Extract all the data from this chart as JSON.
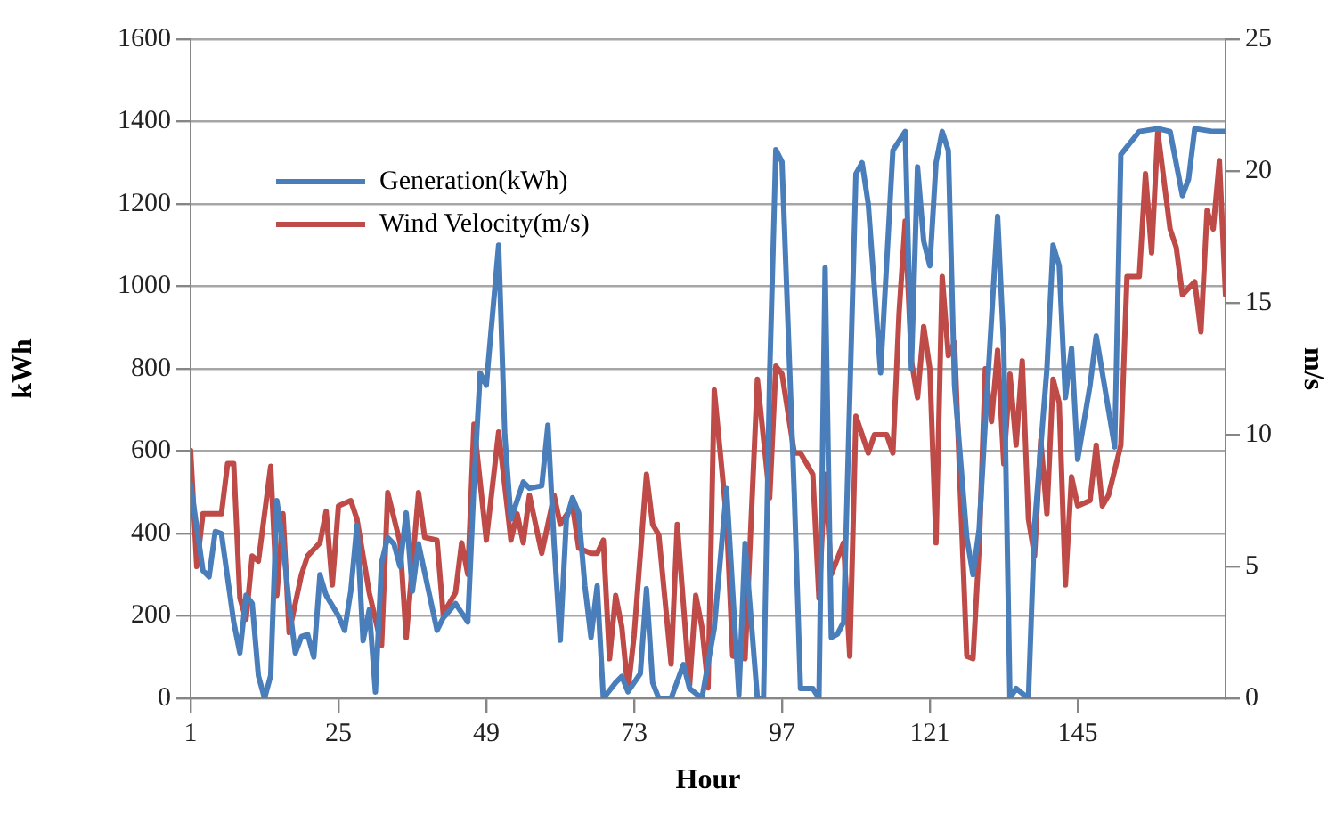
{
  "chart_data": {
    "type": "line",
    "xlabel": "Hour",
    "ylabel": "kWh",
    "y2label": "m/s",
    "xlim": [
      1,
      169
    ],
    "xticks": [
      1,
      25,
      49,
      73,
      97,
      121,
      145
    ],
    "ylim": [
      0,
      1600
    ],
    "yticks": [
      0,
      200,
      400,
      600,
      800,
      1000,
      1200,
      1400,
      1600
    ],
    "y2lim": [
      0,
      25
    ],
    "y2ticks": [
      0,
      5,
      10,
      15,
      20,
      25
    ],
    "grid": "y",
    "legend": "top left",
    "marker": "none",
    "line_style": "solid",
    "series": [
      {
        "name": "Generation(kWh)",
        "color": "#4a7ebb",
        "x": [
          1,
          3,
          4,
          5,
          6,
          8,
          9,
          10,
          11,
          12,
          13,
          14,
          15,
          16,
          17,
          18,
          19,
          20,
          21,
          22,
          23,
          25,
          26,
          27,
          28,
          29,
          30,
          31,
          32,
          33,
          34,
          35,
          36,
          37,
          38,
          41,
          42,
          44,
          46,
          47,
          48,
          49,
          51,
          52,
          53,
          55,
          56,
          58,
          59,
          60,
          61,
          62,
          63,
          64,
          65,
          66,
          67,
          68,
          70,
          71,
          72,
          74,
          75,
          76,
          77,
          79,
          81,
          82,
          84,
          86,
          88,
          90,
          91,
          93,
          94,
          95,
          96,
          97,
          99,
          100,
          102,
          103,
          104,
          105,
          106,
          107,
          109,
          110,
          111,
          113,
          115,
          117,
          118,
          119,
          120,
          121,
          122,
          123,
          124,
          125,
          127,
          128,
          129,
          130,
          132,
          133,
          134,
          135,
          137,
          138,
          140,
          141,
          142,
          143,
          144,
          145,
          147,
          148,
          150,
          151,
          152,
          155,
          158,
          160,
          162,
          163,
          164,
          167,
          169
        ],
        "values": [
          520,
          310,
          295,
          405,
          400,
          185,
          110,
          250,
          230,
          55,
          0,
          55,
          480,
          375,
          230,
          110,
          150,
          155,
          100,
          300,
          250,
          200,
          165,
          260,
          420,
          140,
          215,
          15,
          330,
          390,
          375,
          320,
          450,
          260,
          375,
          165,
          195,
          230,
          185,
          520,
          790,
          760,
          1100,
          640,
          435,
          525,
          510,
          516,
          663,
          376,
          141,
          435,
          487,
          450,
          273,
          148,
          273,
          0,
          38,
          53,
          16,
          60,
          266,
          38,
          0,
          0,
          82,
          24,
          0,
          170,
          509,
          9,
          376,
          0,
          0,
          788,
          1332,
          1302,
          494,
          24,
          24,
          0,
          1045,
          148,
          156,
          185,
          1273,
          1300,
          1200,
          790,
          1330,
          1376,
          800,
          1290,
          1110,
          1050,
          1300,
          1376,
          1330,
          760,
          390,
          300,
          410,
          670,
          1170,
          850,
          0,
          24,
          0,
          420,
          800,
          1100,
          1050,
          730,
          850,
          580,
          760,
          880,
          700,
          610,
          1320,
          1376,
          1383,
          1376,
          1220,
          1260,
          1383,
          1376,
          1376
        ]
      },
      {
        "name": "Wind Velocity(m/s)",
        "color": "#be4b48",
        "axis": "y2",
        "x": [
          1,
          2,
          3,
          4,
          6,
          7,
          8,
          9,
          10,
          11,
          12,
          14,
          15,
          16,
          17,
          19,
          20,
          22,
          23,
          24,
          25,
          27,
          28,
          30,
          32,
          33,
          35,
          36,
          38,
          39,
          41,
          42,
          44,
          45,
          46,
          47,
          49,
          51,
          53,
          54,
          55,
          56,
          58,
          60,
          61,
          63,
          64,
          66,
          67,
          68,
          69,
          70,
          71,
          72,
          73,
          75,
          76,
          77,
          79,
          80,
          82,
          83,
          84,
          85,
          86,
          88,
          89,
          91,
          93,
          95,
          96,
          97,
          99,
          100,
          102,
          103,
          104,
          105,
          107,
          108,
          109,
          111,
          112,
          114,
          115,
          116,
          117,
          118,
          119,
          120,
          121,
          122,
          123,
          124,
          125,
          126,
          127,
          128,
          129,
          130,
          131,
          132,
          133,
          134,
          135,
          136,
          137,
          138,
          139,
          140,
          141,
          142,
          143,
          144,
          145,
          147,
          148,
          149,
          150,
          152,
          153,
          155,
          156,
          157,
          158,
          160,
          161,
          162,
          164,
          165,
          166,
          167,
          168,
          169
        ],
        "values": [
          9.4,
          5.0,
          7.0,
          7.0,
          7.0,
          8.9,
          8.9,
          3.8,
          3.0,
          5.4,
          5.2,
          8.8,
          3.9,
          7.0,
          2.5,
          4.7,
          5.4,
          5.9,
          7.1,
          4.3,
          7.3,
          7.5,
          6.8,
          4.0,
          2.0,
          7.8,
          5.9,
          2.3,
          7.8,
          6.1,
          6.0,
          3.2,
          4.0,
          5.9,
          4.7,
          10.4,
          6.0,
          10.1,
          6.0,
          7.0,
          5.9,
          7.7,
          5.5,
          7.7,
          6.6,
          7.3,
          5.7,
          5.5,
          5.5,
          6.0,
          1.5,
          3.9,
          2.7,
          0.3,
          2.4,
          8.5,
          6.6,
          6.2,
          1.3,
          6.6,
          0.5,
          3.9,
          2.7,
          0.4,
          11.7,
          6.8,
          1.6,
          1.5,
          12.1,
          7.6,
          12.6,
          12.3,
          9.3,
          9.3,
          8.5,
          3.8,
          8.5,
          4.7,
          5.9,
          1.6,
          10.7,
          9.3,
          10.0,
          10.0,
          9.3,
          14.6,
          18.1,
          12.8,
          11.4,
          14.1,
          12.5,
          5.9,
          16.0,
          13.0,
          13.5,
          7.5,
          1.6,
          1.5,
          5.7,
          12.5,
          10.5,
          13.2,
          8.9,
          12.3,
          9.6,
          12.8,
          6.8,
          5.4,
          9.8,
          7.0,
          12.1,
          11.2,
          4.3,
          8.4,
          7.3,
          7.5,
          9.6,
          7.3,
          7.7,
          9.6,
          16.0,
          16.0,
          19.9,
          16.9,
          21.5,
          17.8,
          17.1,
          15.3,
          15.8,
          13.9,
          18.5,
          17.8,
          20.4,
          15.3
        ]
      }
    ]
  }
}
